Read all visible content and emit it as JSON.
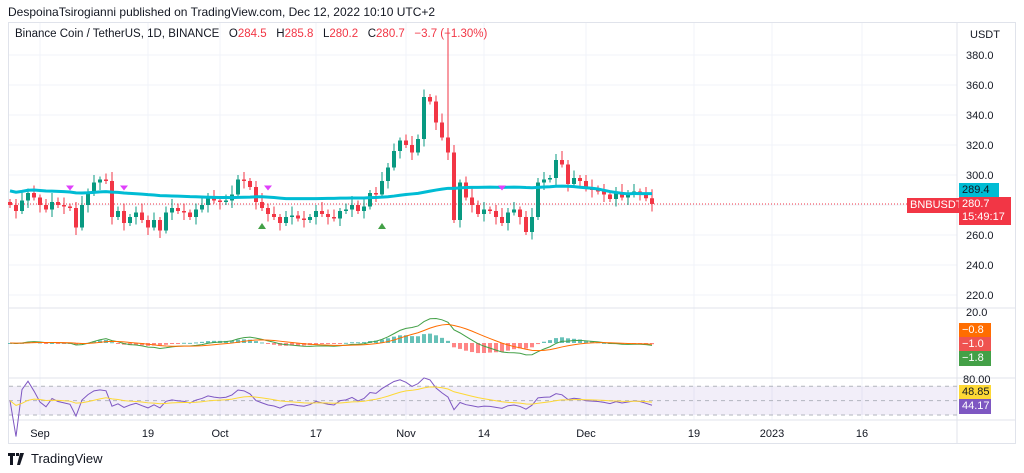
{
  "header": {
    "published": "DespoinaTsirogianni published on TradingView.com, Dec 12, 2022 10:10 UTC+2"
  },
  "legend": {
    "symbol": "Binance Coin / TetherUS, 1D, BINANCE",
    "o_label": "O",
    "o": "284.5",
    "h_label": "H",
    "h": "285.8",
    "l_label": "L",
    "l": "280.2",
    "c_label": "C",
    "c": "280.7",
    "change": "−3.7 (−1.30%)"
  },
  "price_axis": {
    "currency": "USDT",
    "ticks": [
      "380.0",
      "360.0",
      "340.0",
      "320.0",
      "300.0",
      "260.0",
      "240.0",
      "220.0"
    ],
    "ma_tag": "289.4",
    "symbol_tag": "BNBUSDT",
    "last_price": "280.7",
    "countdown": "15:49:17"
  },
  "macd_axis": {
    "tick": "20.0",
    "tags": [
      "−0.8",
      "−1.0",
      "−1.8"
    ]
  },
  "rsi_axis": {
    "tick": "80.00",
    "tags": [
      "48.85",
      "44.17"
    ]
  },
  "x_axis": [
    {
      "label": "Sep",
      "day": 5
    },
    {
      "label": "19",
      "day": 23
    },
    {
      "label": "Oct",
      "day": 35
    },
    {
      "label": "17",
      "day": 51
    },
    {
      "label": "Nov",
      "day": 66
    },
    {
      "label": "14",
      "day": 79
    },
    {
      "label": "Dec",
      "day": 96
    },
    {
      "label": "19",
      "day": 114
    },
    {
      "label": "2023",
      "day": 127
    },
    {
      "label": "16",
      "day": 142
    }
  ],
  "colors": {
    "up": "#089981",
    "down": "#f23645",
    "ma": "#00bcd4",
    "macd": "#ff6d00",
    "signal": "#43a047",
    "rsi": "#7e57c2",
    "rsi_ma": "#fdd835"
  },
  "footer": {
    "brand": "TradingView"
  },
  "chart_data": {
    "type": "candlestick",
    "symbol": "BNBUSDT",
    "start": "2022-08-27",
    "closes": [
      280,
      276,
      283,
      288,
      285,
      280,
      277,
      282,
      280,
      279,
      278,
      265,
      280,
      288,
      295,
      297,
      296,
      272,
      276,
      268,
      272,
      275,
      270,
      265,
      270,
      263,
      275,
      278,
      276,
      275,
      272,
      277,
      280,
      285,
      283,
      282,
      283,
      287,
      297,
      296,
      292,
      282,
      278,
      274,
      272,
      268,
      272,
      273,
      271,
      270,
      272,
      276,
      274,
      272,
      271,
      276,
      277,
      280,
      276,
      279,
      288,
      287,
      296,
      305,
      316,
      323,
      320,
      315,
      324,
      352,
      349,
      335,
      325,
      315,
      270,
      295,
      285,
      280,
      274,
      277,
      276,
      272,
      268,
      275,
      277,
      272,
      262,
      272,
      295,
      297,
      298,
      310,
      307,
      294,
      298,
      296,
      291,
      290,
      289,
      287,
      284,
      288,
      285,
      287,
      289,
      288,
      284.5,
      280.7
    ],
    "spike_high": {
      "day": 73,
      "value": 398
    }
  }
}
